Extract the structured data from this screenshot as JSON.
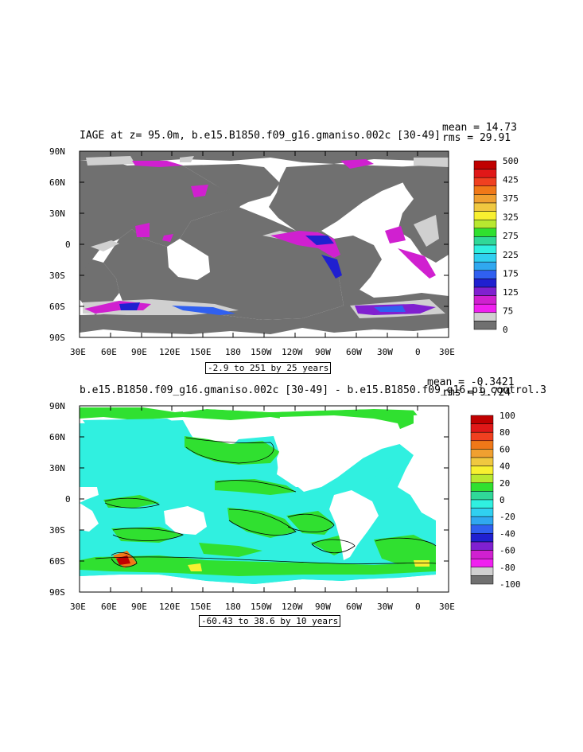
{
  "panels": [
    {
      "title": "IAGE at z=  95.0m, b.e15.B1850.f09_g16.gmaniso.002c [30-49]",
      "mean_text": "mean = 14.73",
      "rms_text": "rms = 29.91",
      "range_text": "-2.9 to 251 by 25 years",
      "colorbar": {
        "labels": [
          "500",
          "425",
          "375",
          "325",
          "275",
          "225",
          "175",
          "125",
          "75",
          "0"
        ],
        "colors": [
          "#c00000",
          "#e01818",
          "#f04020",
          "#f07818",
          "#f0a030",
          "#f0c840",
          "#f8f030",
          "#b8e830",
          "#30e030",
          "#30d898",
          "#30f0e0",
          "#30d0f0",
          "#30a8f0",
          "#3060f0",
          "#2020d0",
          "#8020d0",
          "#d020d0",
          "#f020f0",
          "#d0d0d0",
          "#707070"
        ]
      }
    },
    {
      "title": "b.e15.B1850.f09_g16.gmaniso.002c [30-49] - b.e15.B1850.f09_g16.pi_control.3",
      "mean_text": "mean = -0.3421",
      "rms_text": "rms = 9.724",
      "range_text": "-60.43 to 38.6 by 10 years",
      "colorbar": {
        "labels": [
          "100",
          "80",
          "60",
          "40",
          "20",
          "0",
          "-20",
          "-40",
          "-60",
          "-80",
          "-100"
        ],
        "colors": [
          "#c00000",
          "#e01818",
          "#f04020",
          "#f07818",
          "#f0a030",
          "#f0c840",
          "#f8f030",
          "#b8e830",
          "#30e030",
          "#30d898",
          "#30f0e0",
          "#30d0f0",
          "#30a8f0",
          "#3060f0",
          "#2020d0",
          "#8020d0",
          "#d020d0",
          "#f020f0",
          "#d0d0d0",
          "#707070"
        ]
      }
    }
  ],
  "axes": {
    "lat_labels": [
      "90N",
      "60N",
      "30N",
      "0",
      "30S",
      "60S",
      "90S"
    ],
    "lon_labels": [
      "30E",
      "60E",
      "90E",
      "120E",
      "150E",
      "180",
      "150W",
      "120W",
      "90W",
      "60W",
      "30W",
      "0",
      "30E"
    ]
  },
  "colors": {
    "land_top": "#707070",
    "ocean_top": "#ffffff",
    "shelf_top": "#d0d0d0",
    "ocean_bottom": "#30f0e0",
    "diff_positive": "#30e030",
    "land_bottom": "#ffffff"
  }
}
